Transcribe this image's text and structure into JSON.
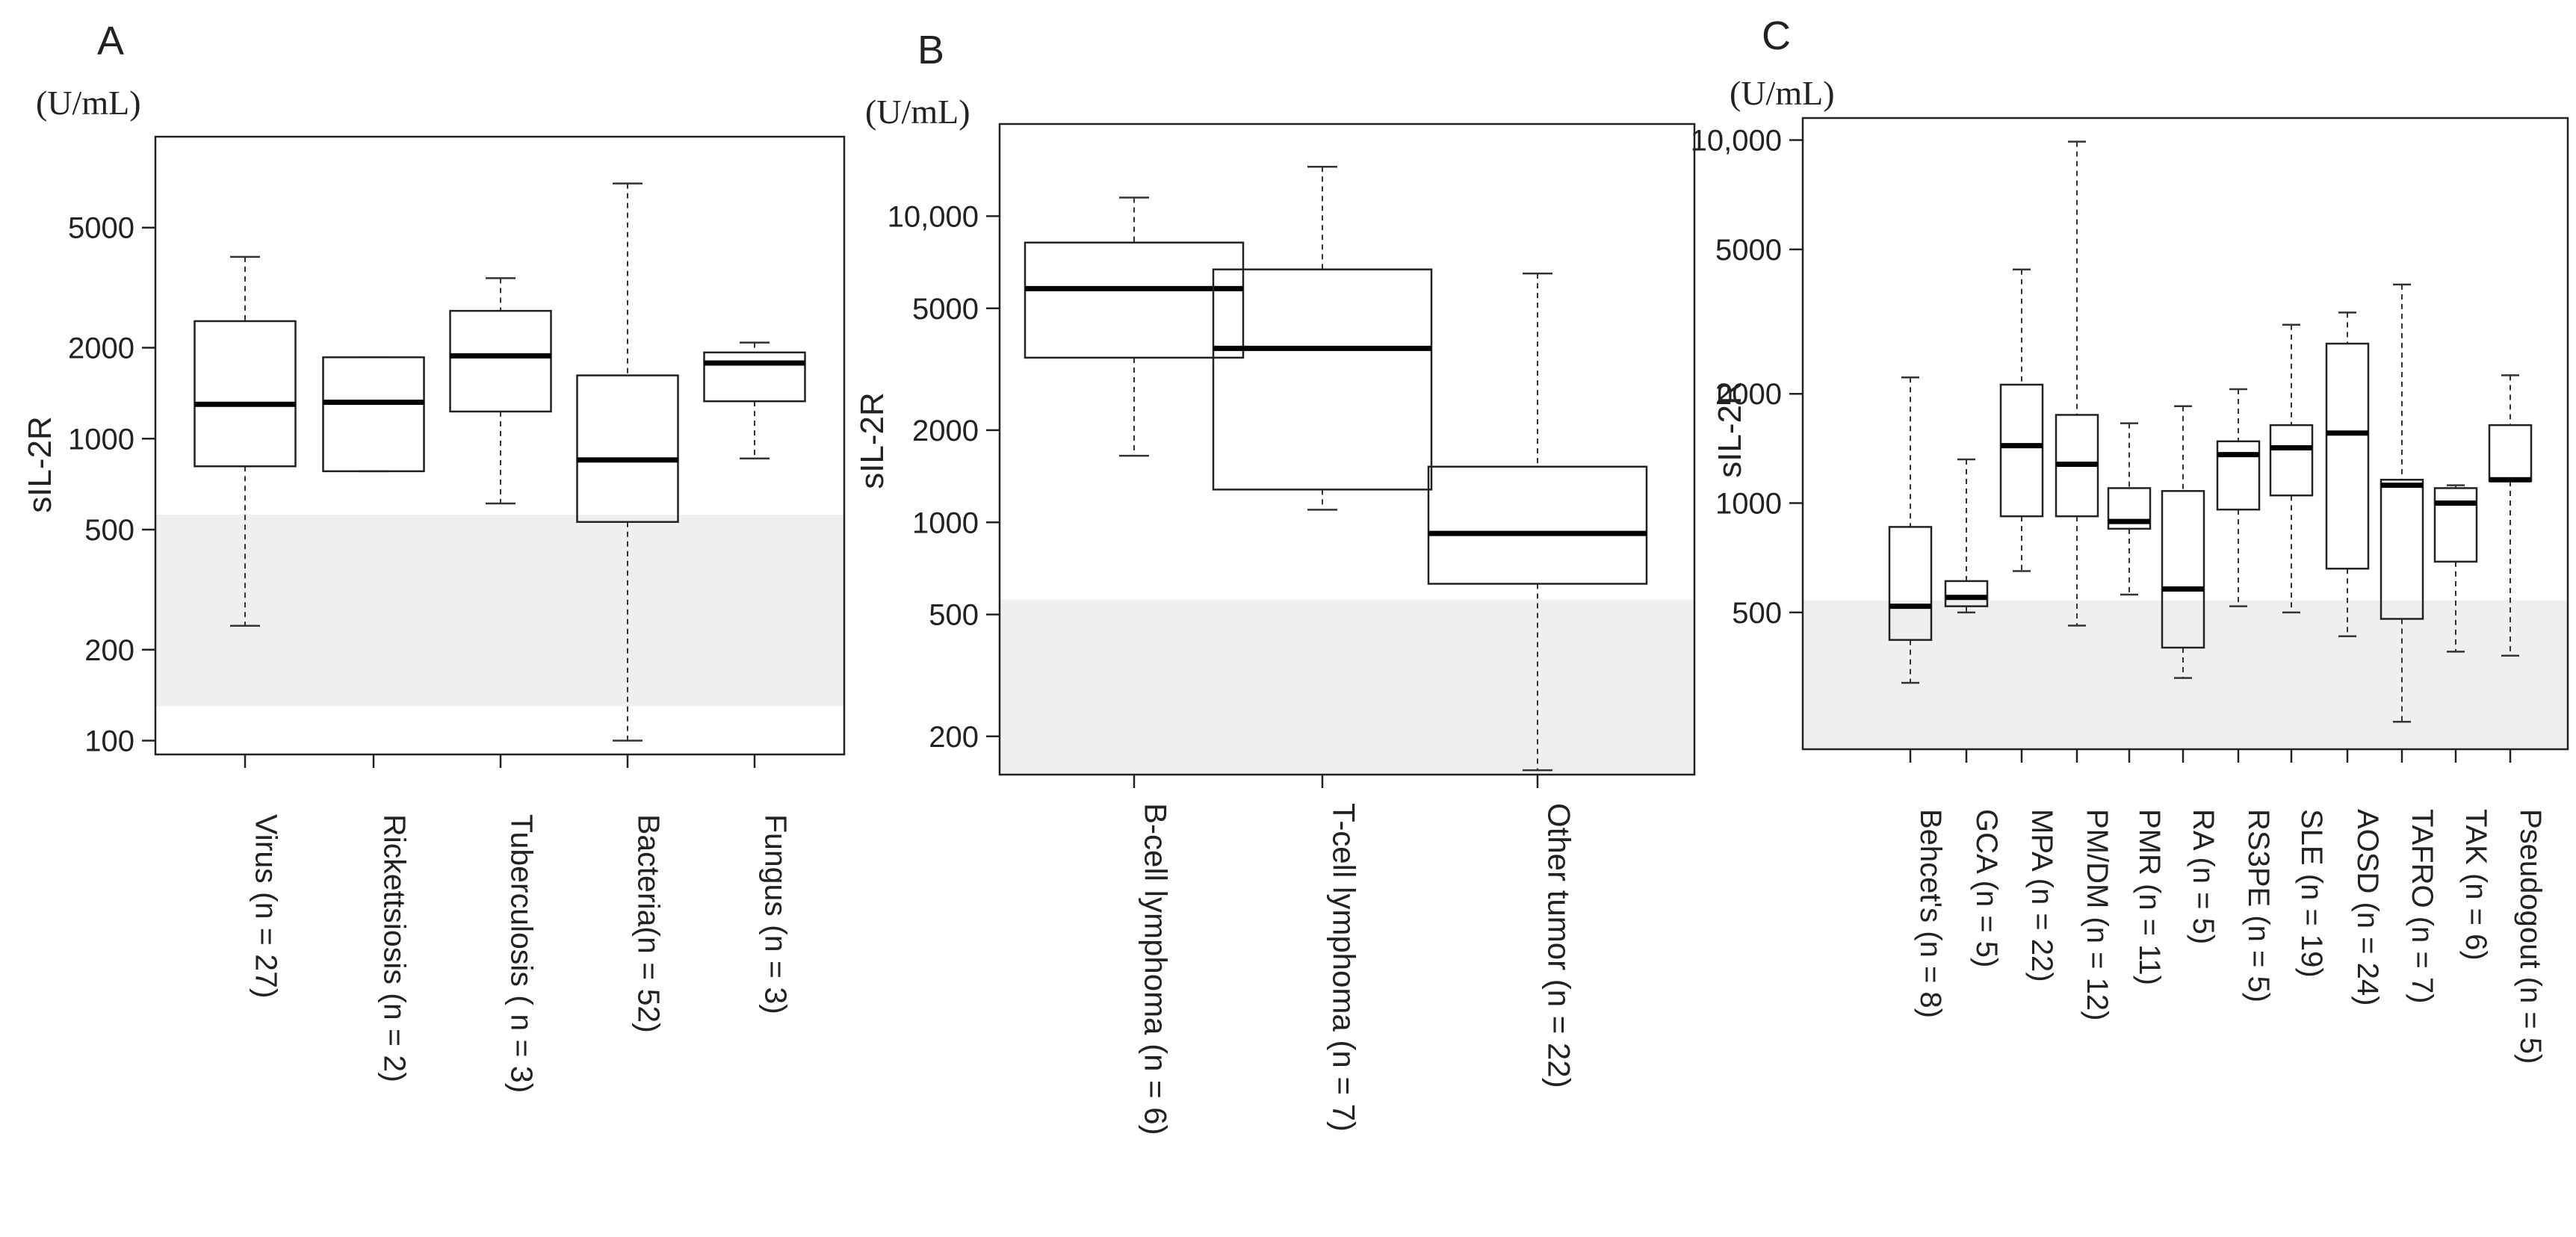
{
  "figure": {
    "background": "#ffffff",
    "shade_color": "#efefef",
    "box_stroke": "#222222",
    "median_color": "#000000"
  },
  "chart_data": [
    {
      "type": "box",
      "panel": "A",
      "unit": "(U/mL)",
      "ylabel": "sIL-2R",
      "yscale": "log",
      "ylim": [
        90,
        10000
      ],
      "yticks": [
        100,
        200,
        500,
        1000,
        2000,
        5000
      ],
      "ytick_labels": [
        "100",
        "200",
        "500",
        "1000",
        "2000",
        "5000"
      ],
      "shade_range": [
        130,
        560
      ],
      "categories": [
        "Virus (n = 27)",
        "Rickettsiosis (n = 2)",
        "Tuberculosis ( n = 3)",
        "Bacteria(n = 52)",
        "Fungus (n = 3)"
      ],
      "boxes": [
        {
          "min": 240,
          "q1": 810,
          "median": 1300,
          "q3": 2450,
          "max": 4000
        },
        {
          "min": 780,
          "q1": 780,
          "median": 1320,
          "q3": 1860,
          "max": 1860
        },
        {
          "min": 610,
          "q1": 1230,
          "median": 1880,
          "q3": 2650,
          "max": 3400
        },
        {
          "min": 100,
          "q1": 530,
          "median": 850,
          "q3": 1620,
          "max": 7000
        },
        {
          "min": 860,
          "q1": 1330,
          "median": 1780,
          "q3": 1930,
          "max": 2080
        }
      ]
    },
    {
      "type": "box",
      "panel": "B",
      "unit": "(U/mL)",
      "ylabel": "sIL-2R",
      "yscale": "log",
      "ylim": [
        150,
        20000
      ],
      "yticks": [
        200,
        500,
        1000,
        2000,
        5000,
        10000
      ],
      "ytick_labels": [
        "200",
        "500",
        "1000",
        "2000",
        "5000",
        "10,000"
      ],
      "shade_range": [
        150,
        560
      ],
      "categories": [
        "B-cell lymphoma (n = 6)",
        "T-cell lymphoma (n = 7)",
        "Other tumor (n = 22)"
      ],
      "boxes": [
        {
          "min": 1650,
          "q1": 3450,
          "median": 5800,
          "q3": 8200,
          "max": 11500
        },
        {
          "min": 1100,
          "q1": 1280,
          "median": 3700,
          "q3": 6700,
          "max": 14500
        },
        {
          "min": 155,
          "q1": 630,
          "median": 920,
          "q3": 1520,
          "max": 6500
        }
      ]
    },
    {
      "type": "box",
      "panel": "C",
      "unit": "(U/mL)",
      "ylabel": "sIL-2R",
      "yscale": "log",
      "ylim": [
        210,
        11500
      ],
      "yticks": [
        500,
        1000,
        2000,
        5000,
        10000
      ],
      "ytick_labels": [
        "500",
        "1000",
        "2000",
        "5000",
        "10,000"
      ],
      "shade_range": [
        210,
        540
      ],
      "categories": [
        "Behcet's (n = 8)",
        "GCA (n = 5)",
        "MPA (n = 22)",
        "PM/DM (n = 12)",
        "PMR (n = 11)",
        "RA (n = 5)",
        "RS3PE (n = 5)",
        "SLE (n = 19)",
        "AOSD (n = 24)",
        "TAFRO (n = 7)",
        "TAK (n = 6)",
        "Pseudogout (n = 5)"
      ],
      "boxes": [
        {
          "min": 320,
          "q1": 420,
          "median": 520,
          "q3": 860,
          "max": 2220
        },
        {
          "min": 500,
          "q1": 520,
          "median": 550,
          "q3": 610,
          "max": 1320
        },
        {
          "min": 650,
          "q1": 920,
          "median": 1440,
          "q3": 2120,
          "max": 4400
        },
        {
          "min": 460,
          "q1": 920,
          "median": 1280,
          "q3": 1750,
          "max": 9900
        },
        {
          "min": 560,
          "q1": 850,
          "median": 890,
          "q3": 1100,
          "max": 1660
        },
        {
          "min": 330,
          "q1": 400,
          "median": 580,
          "q3": 1080,
          "max": 1850
        },
        {
          "min": 520,
          "q1": 960,
          "median": 1360,
          "q3": 1480,
          "max": 2060
        },
        {
          "min": 500,
          "q1": 1050,
          "median": 1420,
          "q3": 1640,
          "max": 3100
        },
        {
          "min": 430,
          "q1": 660,
          "median": 1560,
          "q3": 2750,
          "max": 3350
        },
        {
          "min": 250,
          "q1": 480,
          "median": 1120,
          "q3": 1160,
          "max": 4000
        },
        {
          "min": 390,
          "q1": 690,
          "median": 1000,
          "q3": 1100,
          "max": 1120
        },
        {
          "min": 380,
          "q1": 1150,
          "median": 1160,
          "q3": 1640,
          "max": 2250
        }
      ]
    }
  ]
}
